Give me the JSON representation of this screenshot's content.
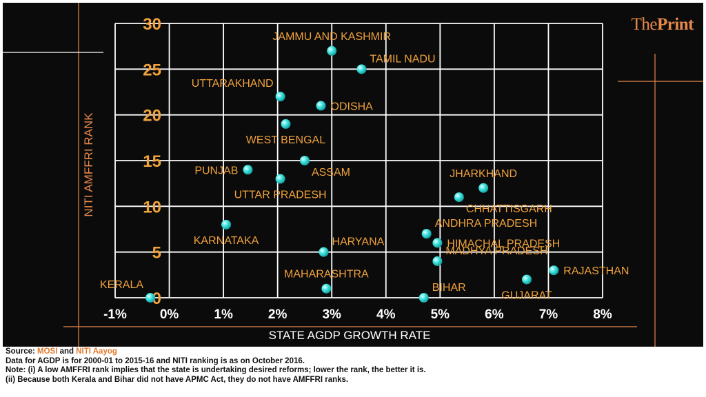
{
  "brand": {
    "prefix": "The",
    "name": "Print",
    "accent": "#e8894a"
  },
  "colors": {
    "background": "#0b0b0b",
    "grid": "#ffffff",
    "label": "#f0a23c",
    "axis_title": "#ffffff",
    "point": "#3fe3e0"
  },
  "footer": {
    "source_prefix": "Source: ",
    "source1": "MOSI",
    "source_and": " and ",
    "source2": "NITI Aayog",
    "line1": "Data for AGDP is for 2000-01 to 2015-16 and NITI ranking is as on October 2016.",
    "line2": "Note: (i) A low AMFFRI rank implies that the state is undertaking desired reforms; lower the rank, the better it is.",
    "line3": "(ii) Because both Kerala and Bihar did not have APMC Act, they do not have AMFFRI ranks."
  },
  "chart_data": {
    "type": "scatter",
    "xlabel": "STATE AGDP GROWTH RATE",
    "ylabel": "NITI AMFFRI RANK",
    "xlim": [
      -1,
      8
    ],
    "ylim": [
      0,
      30
    ],
    "xticks": [
      {
        "value": -1,
        "label": "-1%"
      },
      {
        "value": 0,
        "label": "0%"
      },
      {
        "value": 1,
        "label": "1%"
      },
      {
        "value": 2,
        "label": "2%"
      },
      {
        "value": 3,
        "label": "3%"
      },
      {
        "value": 4,
        "label": "4%"
      },
      {
        "value": 5,
        "label": "5%"
      },
      {
        "value": 6,
        "label": "6%"
      },
      {
        "value": 7,
        "label": "7%"
      },
      {
        "value": 8,
        "label": "8%"
      }
    ],
    "yticks": [
      {
        "value": 0,
        "label": "0"
      },
      {
        "value": 5,
        "label": "5"
      },
      {
        "value": 10,
        "label": "10"
      },
      {
        "value": 15,
        "label": "15"
      },
      {
        "value": 20,
        "label": "20"
      },
      {
        "value": 25,
        "label": "25"
      },
      {
        "value": 30,
        "label": "30"
      }
    ],
    "grid": true,
    "points": [
      {
        "label": "JAMMU AND KASHMIR",
        "x": 3.0,
        "y": 27,
        "anchor": "above"
      },
      {
        "label": "TAMIL NADU",
        "x": 3.55,
        "y": 25,
        "anchor": "upper-right"
      },
      {
        "label": "UTTARAKHAND",
        "x": 2.05,
        "y": 22,
        "anchor": "upper-left"
      },
      {
        "label": "ODISHA",
        "x": 2.8,
        "y": 21,
        "anchor": "right"
      },
      {
        "label": "WEST BENGAL",
        "x": 2.15,
        "y": 19,
        "anchor": "below"
      },
      {
        "label": "ASSAM",
        "x": 2.5,
        "y": 15,
        "anchor": "lower-right"
      },
      {
        "label": "PUNJAB",
        "x": 1.45,
        "y": 14,
        "anchor": "left"
      },
      {
        "label": "UTTAR PRADESH",
        "x": 2.05,
        "y": 13,
        "anchor": "below"
      },
      {
        "label": "KARNATAKA",
        "x": 1.05,
        "y": 8,
        "anchor": "below"
      },
      {
        "label": "HARYANA",
        "x": 2.85,
        "y": 5,
        "anchor": "upper-right"
      },
      {
        "label": "MAHARASHTRA",
        "x": 2.9,
        "y": 1,
        "anchor": "above"
      },
      {
        "label": "KERALA",
        "x": -0.35,
        "y": 0,
        "anchor": "upper-left"
      },
      {
        "label": "JHARKHAND",
        "x": 5.8,
        "y": 12,
        "anchor": "above"
      },
      {
        "label": "CHHATTISGARH",
        "x": 5.35,
        "y": 11,
        "anchor": "lower-right"
      },
      {
        "label": "ANDHRA PRADESH",
        "x": 4.75,
        "y": 7,
        "anchor": "upper-right"
      },
      {
        "label": "HIMACHAL PRADESH",
        "x": 4.95,
        "y": 6,
        "anchor": "right"
      },
      {
        "label": "MADHYA PRADESH",
        "x": 4.95,
        "y": 4,
        "anchor": "upper-right"
      },
      {
        "label": "RAJASTHAN",
        "x": 7.1,
        "y": 3,
        "anchor": "right"
      },
      {
        "label": "GUJARAT",
        "x": 6.6,
        "y": 2,
        "anchor": "below"
      },
      {
        "label": "BIHAR",
        "x": 4.7,
        "y": 0,
        "anchor": "upper-right"
      }
    ]
  }
}
